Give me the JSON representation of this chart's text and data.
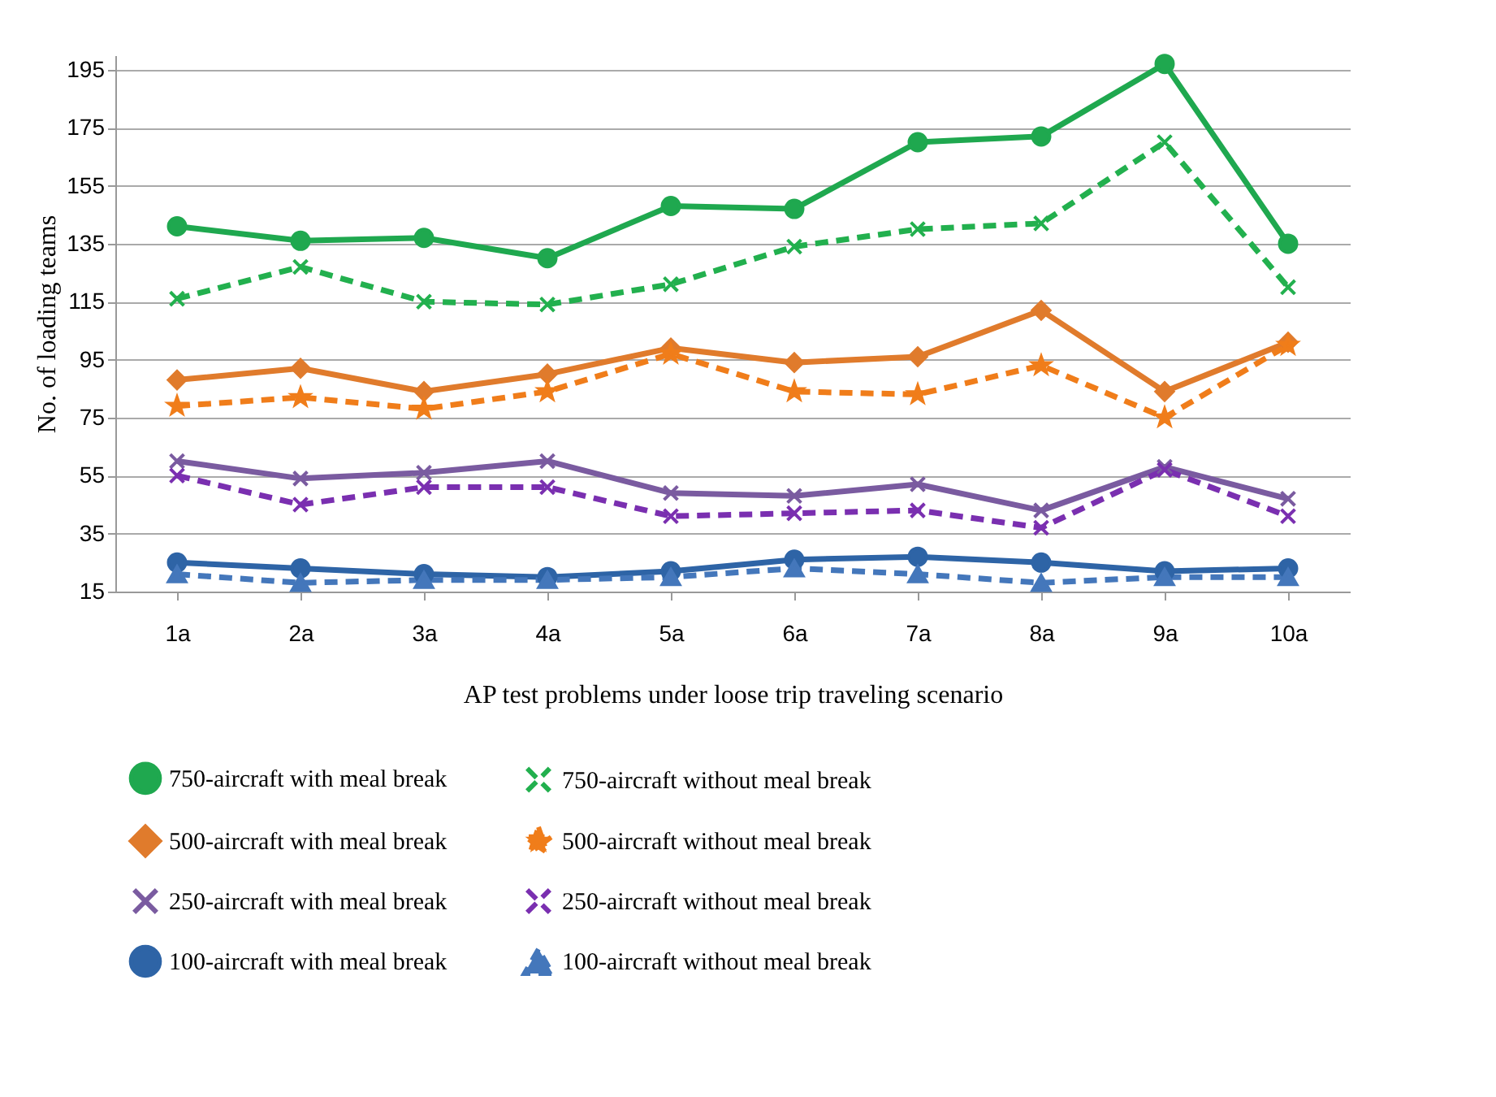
{
  "chart_data": {
    "type": "line",
    "xlabel": "AP test problems under loose trip traveling scenario",
    "ylabel": "No. of loading teams",
    "categories": [
      "1a",
      "2a",
      "3a",
      "4a",
      "5a",
      "6a",
      "7a",
      "8a",
      "9a",
      "10a"
    ],
    "ylim": [
      15,
      200
    ],
    "yticks": [
      15,
      35,
      55,
      75,
      95,
      115,
      135,
      155,
      175,
      195
    ],
    "grid": "y",
    "legend": "bottom",
    "series": [
      {
        "name": "750-aircraft with meal break",
        "color": "#1fa84f",
        "marker": "circle",
        "line_style": "solid",
        "values": [
          141,
          136,
          137,
          130,
          148,
          147,
          170,
          172,
          197,
          135
        ]
      },
      {
        "name": "750-aircraft without meal break",
        "color": "#22b04e",
        "marker": "cross",
        "line_style": "dashed",
        "values": [
          116,
          127,
          115,
          114,
          121,
          134,
          140,
          142,
          170,
          120
        ]
      },
      {
        "name": "500-aircraft with meal break",
        "color": "#e07b2c",
        "marker": "diamond",
        "line_style": "solid",
        "values": [
          88,
          92,
          84,
          90,
          99,
          94,
          96,
          112,
          84,
          101
        ]
      },
      {
        "name": "500-aircraft without meal break",
        "color": "#f07d1a",
        "marker": "star",
        "line_style": "dashed",
        "values": [
          79,
          82,
          78,
          84,
          97,
          84,
          83,
          93,
          75,
          100
        ]
      },
      {
        "name": "250-aircraft with meal break",
        "color": "#7a5ba0",
        "marker": "cross",
        "line_style": "solid",
        "values": [
          60,
          54,
          56,
          60,
          49,
          48,
          52,
          43,
          58,
          47
        ]
      },
      {
        "name": "250-aircraft without meal break",
        "color": "#7a2fb0",
        "marker": "cross",
        "line_style": "dashed",
        "values": [
          55,
          45,
          51,
          51,
          41,
          42,
          43,
          37,
          57,
          41
        ]
      },
      {
        "name": "100-aircraft with meal break",
        "color": "#2e64a6",
        "marker": "circle",
        "line_style": "solid",
        "values": [
          25,
          23,
          21,
          20,
          22,
          26,
          27,
          25,
          22,
          23
        ]
      },
      {
        "name": "100-aircraft without meal break",
        "color": "#4477bb",
        "marker": "triangle",
        "line_style": "dashed",
        "values": [
          21,
          18,
          19,
          19,
          20,
          23,
          21,
          18,
          20,
          20
        ]
      }
    ]
  }
}
